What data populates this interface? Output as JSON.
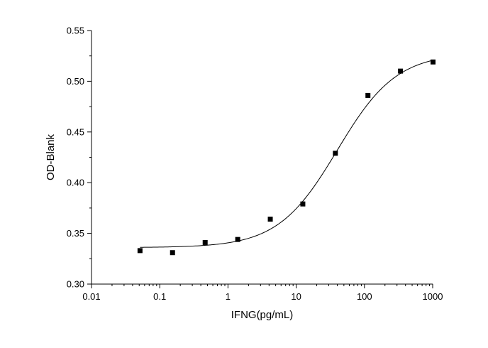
{
  "chart_data": {
    "type": "scatter",
    "title": "",
    "xlabel": "IFNG(pg/mL)",
    "ylabel": "OD-Blank",
    "xscale": "log",
    "xlim": [
      0.01,
      1000
    ],
    "ylim": [
      0.3,
      0.55
    ],
    "grid": false,
    "x_ticks": [
      {
        "value": 0.01,
        "label": "0.01"
      },
      {
        "value": 0.1,
        "label": "0.1"
      },
      {
        "value": 1,
        "label": "1"
      },
      {
        "value": 10,
        "label": "10"
      },
      {
        "value": 100,
        "label": "100"
      },
      {
        "value": 1000,
        "label": "1000"
      }
    ],
    "y_ticks": [
      {
        "value": 0.3,
        "label": "0.30"
      },
      {
        "value": 0.35,
        "label": "0.35"
      },
      {
        "value": 0.4,
        "label": "0.40"
      },
      {
        "value": 0.45,
        "label": "0.45"
      },
      {
        "value": 0.5,
        "label": "0.50"
      },
      {
        "value": 0.55,
        "label": "0.55"
      }
    ],
    "series": [
      {
        "marker": "square",
        "color": "#000000",
        "points": [
          {
            "x": 0.0514,
            "y": 0.333
          },
          {
            "x": 0.154,
            "y": 0.331
          },
          {
            "x": 0.463,
            "y": 0.341
          },
          {
            "x": 1.39,
            "y": 0.344
          },
          {
            "x": 4.17,
            "y": 0.364
          },
          {
            "x": 12.5,
            "y": 0.379
          },
          {
            "x": 37.5,
            "y": 0.429
          },
          {
            "x": 112.5,
            "y": 0.486
          },
          {
            "x": 337.5,
            "y": 0.51
          },
          {
            "x": 1012,
            "y": 0.519
          }
        ]
      }
    ],
    "fit_curve": {
      "model": "4PL",
      "bottom": 0.336,
      "top": 0.528,
      "ec50": 40,
      "hill": 1.0
    }
  }
}
